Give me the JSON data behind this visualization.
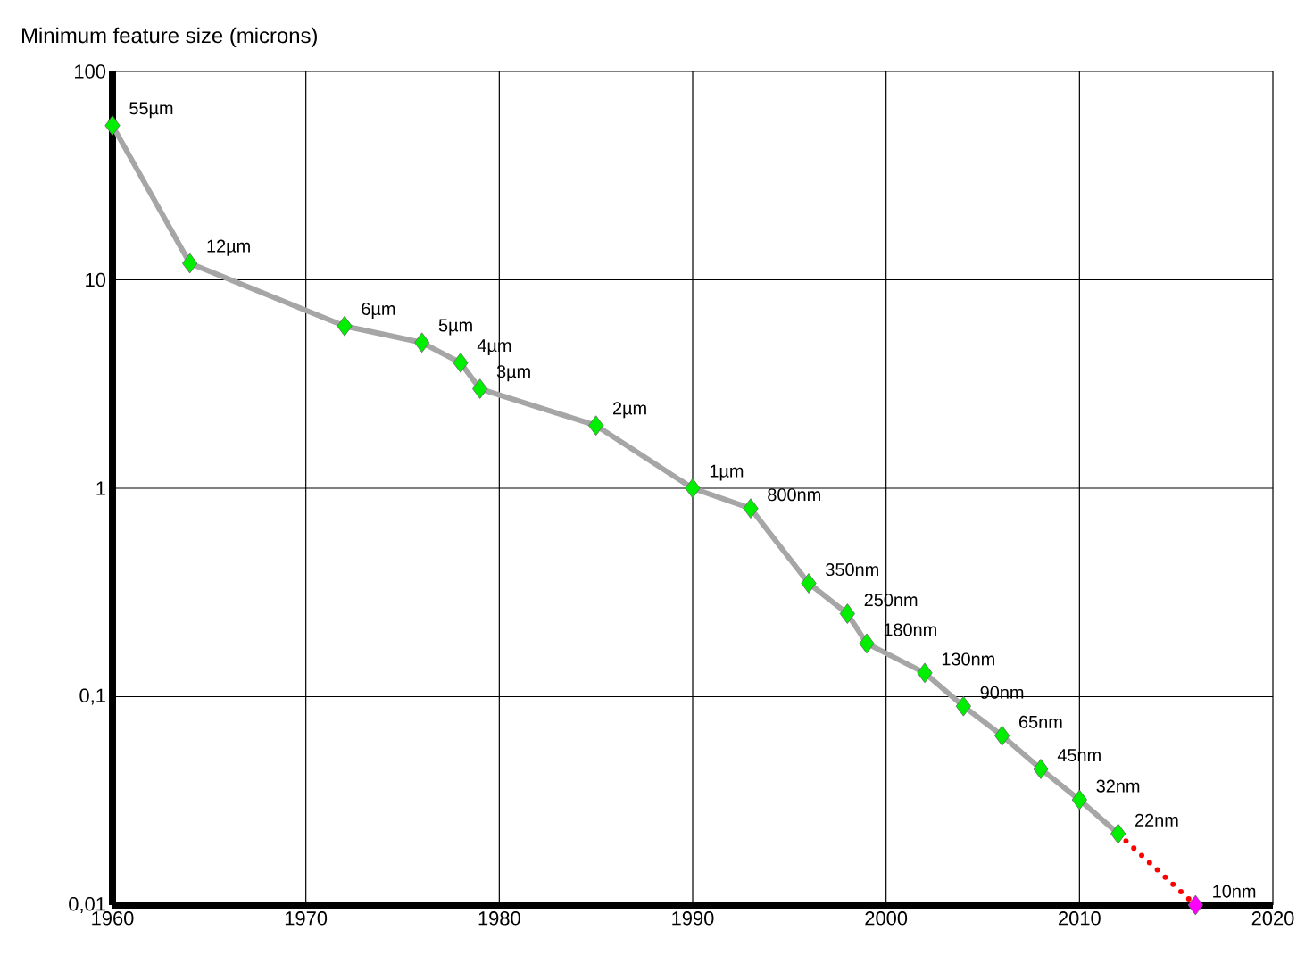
{
  "chart_data": {
    "type": "line",
    "title": "Minimum feature size (microns)",
    "log": "y",
    "grid": true,
    "xlim": [
      1960,
      2020
    ],
    "xticks": [
      1960,
      1970,
      1980,
      1990,
      2000,
      2010,
      2020
    ],
    "ylim": [
      0.01,
      100
    ],
    "yticks": [
      100,
      10,
      1,
      {
        "value": 0.1,
        "label": "0,1"
      },
      {
        "value": 0.01,
        "label": "0,01"
      }
    ],
    "series": [
      {
        "color": "#a6a6a6",
        "marker": "none",
        "line_style": "solid",
        "x": [
          1960,
          1964,
          1972,
          1976,
          1978,
          1979,
          1985,
          1990,
          1993,
          1996,
          1998,
          1999,
          2002,
          2004,
          2006,
          2008,
          2010,
          2012
        ],
        "values": [
          55,
          12,
          6,
          5,
          4,
          3,
          2,
          1,
          0.8,
          0.35,
          0.25,
          0.18,
          0.13,
          0.09,
          0.065,
          0.045,
          0.032,
          0.022
        ]
      },
      {
        "color": "#ff0000",
        "marker": "none",
        "line_style": "dotted",
        "x": [
          2012,
          2016
        ],
        "values": [
          0.022,
          0.01
        ]
      },
      {
        "type": "scatter",
        "color": "#00ee00",
        "marker": "diamond",
        "x": [
          1960,
          1964,
          1972,
          1976,
          1978,
          1979,
          1985,
          1990,
          1993,
          1996,
          1998,
          1999,
          2002,
          2004,
          2006,
          2008,
          2010,
          2012
        ],
        "values": [
          55,
          12,
          6,
          5,
          4,
          3,
          2,
          1,
          0.8,
          0.35,
          0.25,
          0.18,
          0.13,
          0.09,
          0.065,
          0.045,
          0.032,
          0.022
        ]
      },
      {
        "type": "scatter",
        "color": "#ff00ff",
        "marker": "diamond",
        "x": [
          2016
        ],
        "values": [
          0.01
        ]
      }
    ],
    "annotations": [
      {
        "text": "55µm",
        "x": 1960,
        "y": 55
      },
      {
        "text": "12µm",
        "x": 1964,
        "y": 12
      },
      {
        "text": "6µm",
        "x": 1972,
        "y": 6
      },
      {
        "text": "5µm",
        "x": 1976,
        "y": 5
      },
      {
        "text": "4µm",
        "x": 1978,
        "y": 4
      },
      {
        "text": "3µm",
        "x": 1979,
        "y": 3
      },
      {
        "text": "2µm",
        "x": 1985,
        "y": 2
      },
      {
        "text": "1µm",
        "x": 1990,
        "y": 1
      },
      {
        "text": "800nm",
        "x": 1993,
        "y": 0.8
      },
      {
        "text": "350nm",
        "x": 1996,
        "y": 0.35
      },
      {
        "text": "250nm",
        "x": 1998,
        "y": 0.25
      },
      {
        "text": "180nm",
        "x": 1999,
        "y": 0.18
      },
      {
        "text": "130nm",
        "x": 2002,
        "y": 0.13
      },
      {
        "text": "90nm",
        "x": 2004,
        "y": 0.09
      },
      {
        "text": "65nm",
        "x": 2006,
        "y": 0.065
      },
      {
        "text": "45nm",
        "x": 2008,
        "y": 0.045
      },
      {
        "text": "32nm",
        "x": 2010,
        "y": 0.032
      },
      {
        "text": "22nm",
        "x": 2012,
        "y": 0.022
      },
      {
        "text": "10nm",
        "x": 2016,
        "y": 0.01
      }
    ]
  }
}
